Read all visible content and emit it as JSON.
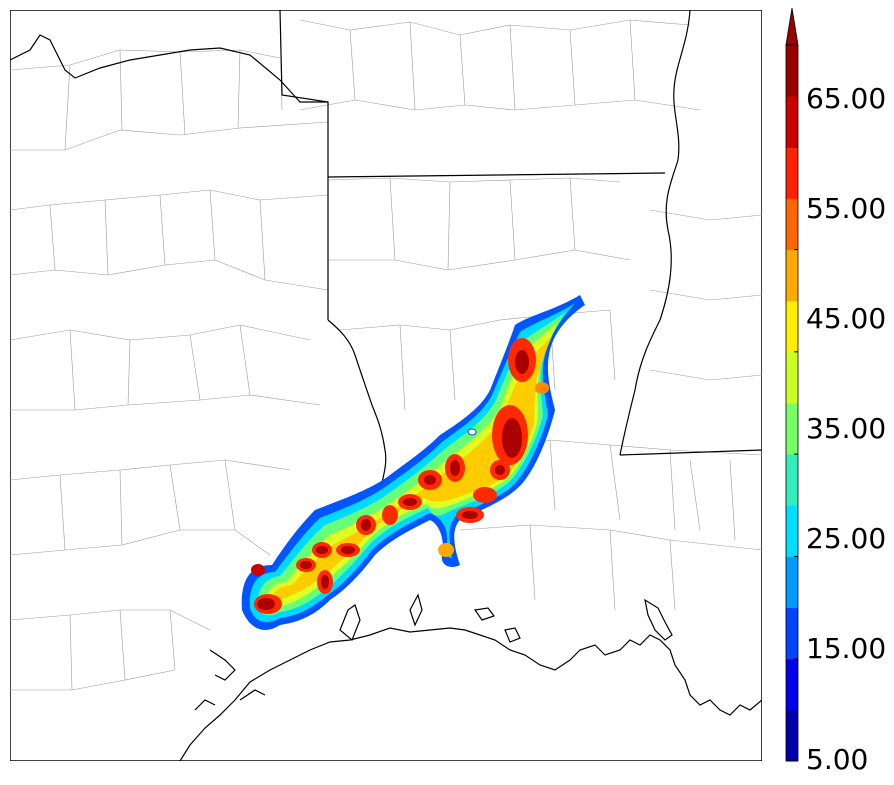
{
  "map": {
    "colors": {
      "background": "#ffffff",
      "county_lines": "#9a9a9a",
      "state_lines": "#000000",
      "coast_lines": "#000000"
    }
  },
  "colorbar": {
    "tick_labels": [
      "5.00",
      "15.00",
      "25.00",
      "35.00",
      "45.00",
      "55.00",
      "65.00"
    ],
    "levels": [
      5,
      10,
      15,
      20,
      25,
      30,
      35,
      40,
      45,
      50,
      55,
      60,
      65,
      70
    ],
    "colors": [
      "#0000aa",
      "#0000ee",
      "#0044ff",
      "#0099ff",
      "#00ddff",
      "#33eebb",
      "#77ff66",
      "#ccff22",
      "#ffee00",
      "#ffaa00",
      "#ff6600",
      "#ff2200",
      "#cc0000",
      "#990000"
    ],
    "extend": "max"
  }
}
